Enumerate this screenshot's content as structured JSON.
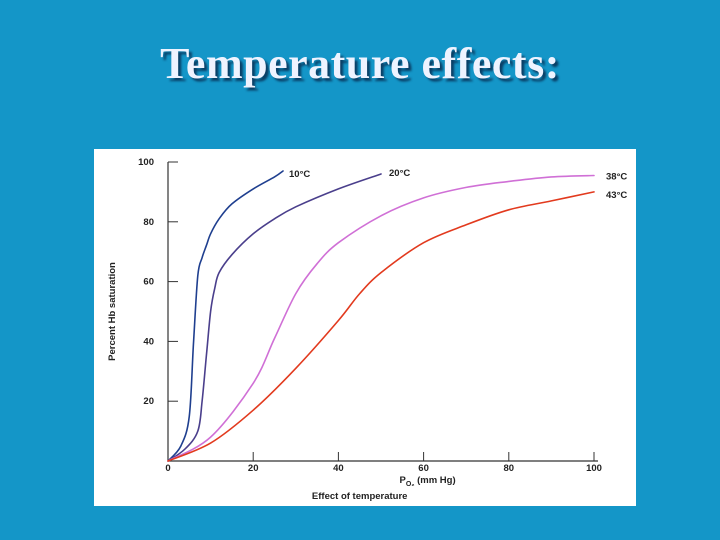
{
  "slide": {
    "title": "Temperature effects:"
  },
  "chart_data": {
    "type": "line",
    "title": "",
    "xlabel_main": "P",
    "xlabel_sub": "O₂",
    "xlabel_rest": " (mm Hg)",
    "caption": "Effect of temperature",
    "ylabel": "Percent Hb saturation",
    "xlim": [
      0,
      100
    ],
    "ylim": [
      0,
      100
    ],
    "xticks": [
      0,
      20,
      40,
      60,
      80,
      100
    ],
    "yticks": [
      20,
      40,
      60,
      80,
      100
    ],
    "grid": false,
    "series": [
      {
        "name": "10°C",
        "color": "#1f3f8f",
        "x": [
          0,
          3,
          5,
          6,
          7,
          8,
          9,
          10,
          12,
          15,
          20,
          25,
          27
        ],
        "y": [
          0,
          5,
          15,
          40,
          62,
          68,
          72,
          76,
          81,
          86,
          91,
          95,
          97
        ]
      },
      {
        "name": "20°C",
        "color": "#4a3f8c",
        "x": [
          0,
          4,
          7,
          8,
          9,
          10,
          11,
          12,
          15,
          20,
          25,
          30,
          40,
          50
        ],
        "y": [
          0,
          4,
          10,
          20,
          35,
          50,
          58,
          63,
          69,
          76,
          81,
          85,
          91,
          96
        ]
      },
      {
        "name": "38°C",
        "color": "#d070d6",
        "x": [
          0,
          10,
          20,
          25,
          30,
          35,
          40,
          50,
          60,
          70,
          80,
          90,
          100
        ],
        "y": [
          0,
          8,
          26,
          41,
          56,
          66,
          73,
          82,
          88,
          91.5,
          93.5,
          95,
          95.5
        ]
      },
      {
        "name": "43°C",
        "color": "#e23a1e",
        "x": [
          0,
          10,
          20,
          30,
          40,
          45,
          50,
          60,
          70,
          80,
          90,
          100
        ],
        "y": [
          0,
          6,
          17,
          31,
          47,
          56,
          63,
          73,
          79,
          84,
          87,
          90
        ]
      }
    ]
  }
}
